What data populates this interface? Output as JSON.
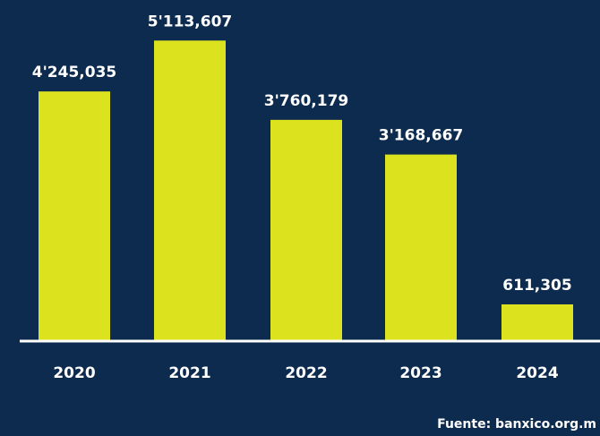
{
  "colors": {
    "background": "#0d2b4e",
    "bar": "#dde21f",
    "baseline": "#ffffff",
    "text": "#ffffff"
  },
  "source": "Fuente: banxico.org.m",
  "chart_data": {
    "type": "bar",
    "categories": [
      "2020",
      "2021",
      "2022",
      "2023",
      "2024"
    ],
    "values": [
      4245035,
      5113607,
      3760179,
      3168667,
      611305
    ],
    "value_labels": [
      "4'245,035",
      "5'113,607",
      "3'760,179",
      "3'168,667",
      "611,305"
    ],
    "title": "",
    "xlabel": "",
    "ylabel": "",
    "ylim": [
      0,
      5500000
    ],
    "grid": false,
    "legend": "none"
  }
}
